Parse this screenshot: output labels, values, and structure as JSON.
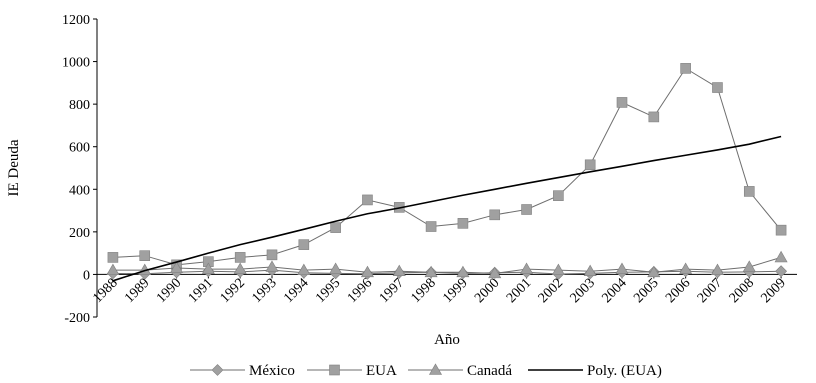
{
  "chart_data": {
    "type": "line",
    "title": "",
    "xlabel": "Año",
    "ylabel": "IE Deuda",
    "ylim": [
      -200,
      1200
    ],
    "yticks": [
      -200,
      0,
      200,
      400,
      600,
      800,
      1000,
      1200
    ],
    "categories": [
      "1988",
      "1989",
      "1990",
      "1991",
      "1992",
      "1993",
      "1994",
      "1995",
      "1996",
      "1997",
      "1998",
      "1999",
      "2000",
      "2001",
      "2002",
      "2003",
      "2004",
      "2005",
      "2006",
      "2007",
      "2008",
      "2009"
    ],
    "legend_position": "bottom",
    "grid": false,
    "series": [
      {
        "name": "México",
        "marker": "diamond",
        "color": "#a0a0a0",
        "values": [
          5,
          3,
          10,
          15,
          12,
          20,
          8,
          5,
          3,
          8,
          10,
          5,
          8,
          10,
          2,
          5,
          10,
          12,
          15,
          10,
          12,
          15
        ]
      },
      {
        "name": "EUA",
        "marker": "square",
        "color": "#a0a0a0",
        "values": [
          80,
          88,
          45,
          60,
          80,
          92,
          140,
          220,
          350,
          315,
          225,
          240,
          280,
          305,
          370,
          515,
          808,
          740,
          968,
          878,
          390,
          208
        ]
      },
      {
        "name": "Canadá",
        "marker": "triangle",
        "color": "#a0a0a0",
        "values": [
          20,
          20,
          30,
          25,
          25,
          35,
          20,
          25,
          10,
          15,
          10,
          10,
          5,
          25,
          20,
          15,
          25,
          10,
          25,
          20,
          35,
          80
        ]
      },
      {
        "name": "Poly. (EUA)",
        "marker": "none",
        "color": "#000000",
        "values": [
          -30,
          18,
          58,
          100,
          140,
          175,
          212,
          250,
          285,
          312,
          342,
          372,
          400,
          428,
          455,
          482,
          508,
          535,
          560,
          585,
          612,
          648
        ]
      }
    ]
  }
}
